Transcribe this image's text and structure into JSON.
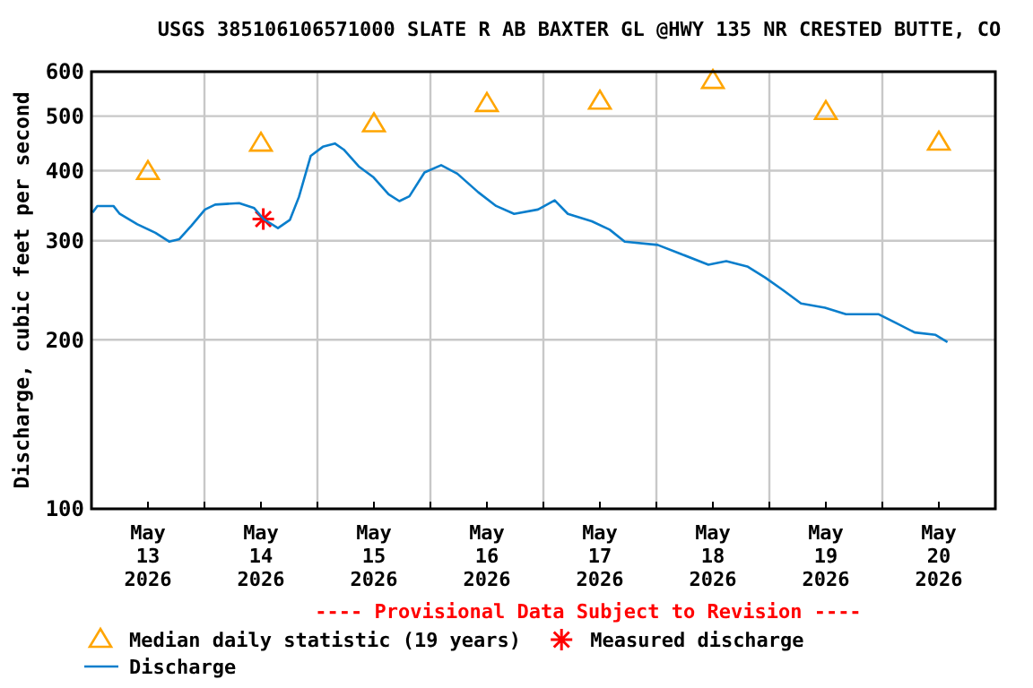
{
  "chart_data": {
    "type": "line",
    "title": "USGS 385106106571000 SLATE R AB BAXTER GL @HWY 135 NR CRESTED BUTTE, CO",
    "ylabel": "Discharge, cubic feet per second",
    "annotations": [
      "---- Provisional Data Subject to Revision ----"
    ],
    "log": "y",
    "grid": true,
    "legend": "bottom",
    "ylim": [
      100,
      600
    ],
    "yticks": [
      100,
      200,
      300,
      400,
      500,
      600
    ],
    "xlim": [
      "2026-05-13T00:00",
      "2026-05-21T00:00"
    ],
    "xticks": [
      {
        "value": "2026-05-13T12:00",
        "label": "May\n13\n2026"
      },
      {
        "value": "2026-05-14T00:00",
        "label": null
      },
      {
        "value": "2026-05-14T12:00",
        "label": "May\n14\n2026"
      },
      {
        "value": "2026-05-15T00:00",
        "label": null
      },
      {
        "value": "2026-05-15T12:00",
        "label": "May\n15\n2026"
      },
      {
        "value": "2026-05-16T00:00",
        "label": null
      },
      {
        "value": "2026-05-16T12:00",
        "label": "May\n16\n2026"
      },
      {
        "value": "2026-05-17T00:00",
        "label": null
      },
      {
        "value": "2026-05-17T12:00",
        "label": "May\n17\n2026"
      },
      {
        "value": "2026-05-18T00:00",
        "label": null
      },
      {
        "value": "2026-05-18T12:00",
        "label": "May\n18\n2026"
      },
      {
        "value": "2026-05-19T00:00",
        "label": null
      },
      {
        "value": "2026-05-19T12:00",
        "label": "May\n19\n2026"
      },
      {
        "value": "2026-05-20T00:00",
        "label": null
      },
      {
        "value": "2026-05-20T12:00",
        "label": "May\n20\n2026"
      }
    ],
    "series": [
      {
        "name": "Median daily statistic (19 years)",
        "type": "scatter",
        "marker": "triangle",
        "color": "#ffa500",
        "x": [
          "2026-05-13T12:00",
          "2026-05-14T12:00",
          "2026-05-15T12:00",
          "2026-05-16T12:00",
          "2026-05-17T12:00",
          "2026-05-18T12:00",
          "2026-05-19T12:00",
          "2026-05-20T12:00"
        ],
        "values": [
          398,
          447,
          484,
          526,
          531,
          578,
          509,
          449
        ]
      },
      {
        "name": "Measured discharge",
        "type": "scatter",
        "marker": "cross",
        "color": "#ff0000",
        "x": [
          "2026-05-14T12:30"
        ],
        "values": [
          328
        ]
      },
      {
        "name": "Discharge",
        "marker": "none",
        "color": "#0a7ecc",
        "x": [
          "2026-05-13T00:15",
          "2026-05-13T01:15",
          "2026-05-13T04:40",
          "2026-05-13T06:00",
          "2026-05-13T09:45",
          "2026-05-13T13:35",
          "2026-05-13T16:30",
          "2026-05-13T18:40",
          "2026-05-13T21:12",
          "2026-05-14T00:07",
          "2026-05-14T02:17",
          "2026-05-14T07:22",
          "2026-05-14T10:34",
          "2026-05-14T12:34",
          "2026-05-14T15:37",
          "2026-05-14T18:10",
          "2026-05-14T20:04",
          "2026-05-14T22:35",
          "2026-05-15T01:09",
          "2026-05-15T03:42",
          "2026-05-15T05:35",
          "2026-05-15T08:46",
          "2026-05-15T11:56",
          "2026-05-15T15:07",
          "2026-05-15T17:24",
          "2026-05-15T19:32",
          "2026-05-15T22:45",
          "2026-05-16T02:17",
          "2026-05-16T05:43",
          "2026-05-16T10:10",
          "2026-05-16T13:58",
          "2026-05-16T17:47",
          "2026-05-16T22:51",
          "2026-05-17T02:24",
          "2026-05-17T05:12",
          "2026-05-17T10:17",
          "2026-05-17T14:05",
          "2026-05-17T17:16",
          "2026-05-18T00:16",
          "2026-05-18T05:20",
          "2026-05-18T11:03",
          "2026-05-18T14:51",
          "2026-05-18T19:18",
          "2026-05-18T23:07",
          "2026-05-19T02:56",
          "2026-05-19T06:44",
          "2026-05-19T11:49",
          "2026-05-19T16:16",
          "2026-05-19T23:14",
          "2026-05-20T03:02",
          "2026-05-20T06:52",
          "2026-05-20T11:18",
          "2026-05-20T13:50"
        ],
        "values": [
          337,
          346,
          346,
          335,
          321,
          310,
          299,
          302,
          319,
          341,
          348,
          350,
          343,
          328,
          316,
          327,
          359,
          425,
          441,
          447,
          436,
          407,
          389,
          363,
          353,
          360,
          397,
          409,
          395,
          366,
          346,
          335,
          341,
          354,
          335,
          325,
          314,
          299,
          295,
          284,
          272,
          276,
          270,
          258,
          245,
          232,
          228,
          222,
          222,
          214,
          206,
          204,
          198
        ]
      }
    ]
  }
}
